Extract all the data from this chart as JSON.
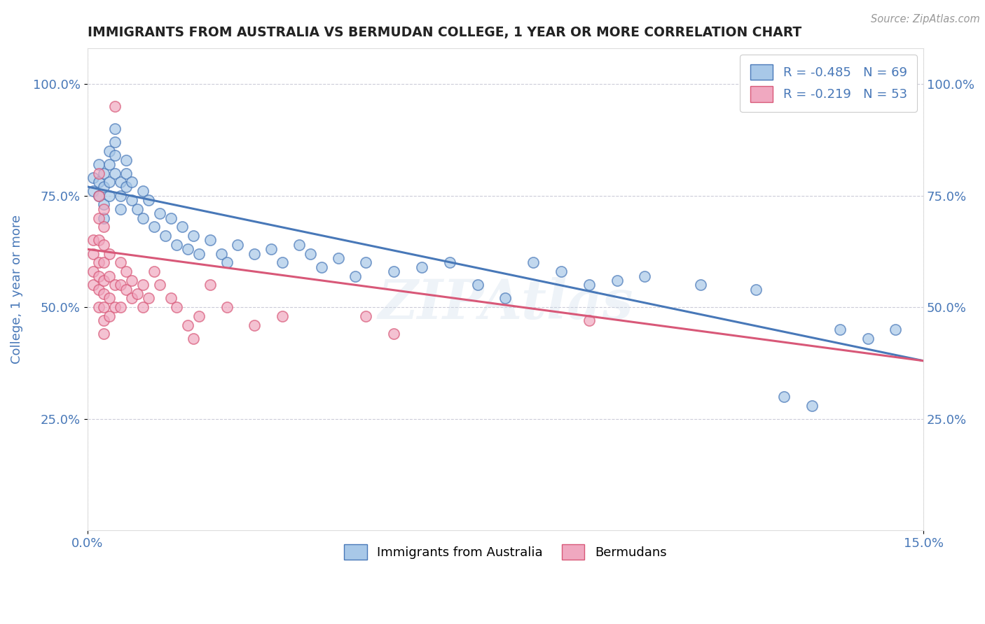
{
  "title": "IMMIGRANTS FROM AUSTRALIA VS BERMUDAN COLLEGE, 1 YEAR OR MORE CORRELATION CHART",
  "source_text": "Source: ZipAtlas.com",
  "ylabel_text": "College, 1 year or more",
  "xmin": 0.0,
  "xmax": 0.15,
  "ymin": 0.0,
  "ymax": 1.08,
  "ytick_vals": [
    0.25,
    0.5,
    0.75,
    1.0
  ],
  "ytick_labels": [
    "25.0%",
    "50.0%",
    "75.0%",
    "100.0%"
  ],
  "xtick_vals": [
    0.0,
    0.15
  ],
  "xtick_labels": [
    "0.0%",
    "15.0%"
  ],
  "blue_scatter": [
    [
      0.001,
      0.79
    ],
    [
      0.001,
      0.76
    ],
    [
      0.002,
      0.82
    ],
    [
      0.002,
      0.78
    ],
    [
      0.002,
      0.75
    ],
    [
      0.003,
      0.8
    ],
    [
      0.003,
      0.77
    ],
    [
      0.003,
      0.73
    ],
    [
      0.003,
      0.7
    ],
    [
      0.004,
      0.85
    ],
    [
      0.004,
      0.82
    ],
    [
      0.004,
      0.78
    ],
    [
      0.004,
      0.75
    ],
    [
      0.005,
      0.9
    ],
    [
      0.005,
      0.87
    ],
    [
      0.005,
      0.84
    ],
    [
      0.005,
      0.8
    ],
    [
      0.006,
      0.78
    ],
    [
      0.006,
      0.75
    ],
    [
      0.006,
      0.72
    ],
    [
      0.007,
      0.83
    ],
    [
      0.007,
      0.8
    ],
    [
      0.007,
      0.77
    ],
    [
      0.008,
      0.78
    ],
    [
      0.008,
      0.74
    ],
    [
      0.009,
      0.72
    ],
    [
      0.01,
      0.76
    ],
    [
      0.01,
      0.7
    ],
    [
      0.011,
      0.74
    ],
    [
      0.012,
      0.68
    ],
    [
      0.013,
      0.71
    ],
    [
      0.014,
      0.66
    ],
    [
      0.015,
      0.7
    ],
    [
      0.016,
      0.64
    ],
    [
      0.017,
      0.68
    ],
    [
      0.018,
      0.63
    ],
    [
      0.019,
      0.66
    ],
    [
      0.02,
      0.62
    ],
    [
      0.022,
      0.65
    ],
    [
      0.024,
      0.62
    ],
    [
      0.025,
      0.6
    ],
    [
      0.027,
      0.64
    ],
    [
      0.03,
      0.62
    ],
    [
      0.033,
      0.63
    ],
    [
      0.035,
      0.6
    ],
    [
      0.038,
      0.64
    ],
    [
      0.04,
      0.62
    ],
    [
      0.042,
      0.59
    ],
    [
      0.045,
      0.61
    ],
    [
      0.048,
      0.57
    ],
    [
      0.05,
      0.6
    ],
    [
      0.055,
      0.58
    ],
    [
      0.06,
      0.59
    ],
    [
      0.065,
      0.6
    ],
    [
      0.07,
      0.55
    ],
    [
      0.075,
      0.52
    ],
    [
      0.08,
      0.6
    ],
    [
      0.085,
      0.58
    ],
    [
      0.09,
      0.55
    ],
    [
      0.095,
      0.56
    ],
    [
      0.1,
      0.57
    ],
    [
      0.11,
      0.55
    ],
    [
      0.12,
      0.54
    ],
    [
      0.125,
      0.3
    ],
    [
      0.13,
      0.28
    ],
    [
      0.135,
      0.45
    ],
    [
      0.14,
      0.43
    ],
    [
      0.145,
      0.45
    ]
  ],
  "pink_scatter": [
    [
      0.001,
      0.65
    ],
    [
      0.001,
      0.62
    ],
    [
      0.001,
      0.58
    ],
    [
      0.001,
      0.55
    ],
    [
      0.002,
      0.8
    ],
    [
      0.002,
      0.75
    ],
    [
      0.002,
      0.7
    ],
    [
      0.002,
      0.65
    ],
    [
      0.002,
      0.6
    ],
    [
      0.002,
      0.57
    ],
    [
      0.002,
      0.54
    ],
    [
      0.002,
      0.5
    ],
    [
      0.003,
      0.72
    ],
    [
      0.003,
      0.68
    ],
    [
      0.003,
      0.64
    ],
    [
      0.003,
      0.6
    ],
    [
      0.003,
      0.56
    ],
    [
      0.003,
      0.53
    ],
    [
      0.003,
      0.5
    ],
    [
      0.003,
      0.47
    ],
    [
      0.003,
      0.44
    ],
    [
      0.004,
      0.62
    ],
    [
      0.004,
      0.57
    ],
    [
      0.004,
      0.52
    ],
    [
      0.004,
      0.48
    ],
    [
      0.005,
      0.95
    ],
    [
      0.005,
      0.55
    ],
    [
      0.005,
      0.5
    ],
    [
      0.006,
      0.6
    ],
    [
      0.006,
      0.55
    ],
    [
      0.006,
      0.5
    ],
    [
      0.007,
      0.58
    ],
    [
      0.007,
      0.54
    ],
    [
      0.008,
      0.56
    ],
    [
      0.008,
      0.52
    ],
    [
      0.009,
      0.53
    ],
    [
      0.01,
      0.55
    ],
    [
      0.01,
      0.5
    ],
    [
      0.011,
      0.52
    ],
    [
      0.012,
      0.58
    ],
    [
      0.013,
      0.55
    ],
    [
      0.015,
      0.52
    ],
    [
      0.016,
      0.5
    ],
    [
      0.018,
      0.46
    ],
    [
      0.019,
      0.43
    ],
    [
      0.02,
      0.48
    ],
    [
      0.022,
      0.55
    ],
    [
      0.025,
      0.5
    ],
    [
      0.03,
      0.46
    ],
    [
      0.035,
      0.48
    ],
    [
      0.05,
      0.48
    ],
    [
      0.055,
      0.44
    ],
    [
      0.09,
      0.47
    ]
  ],
  "blue_line_x": [
    0.0,
    0.15
  ],
  "blue_line_y": [
    0.77,
    0.38
  ],
  "pink_line_x": [
    0.0,
    0.15
  ],
  "pink_line_y": [
    0.63,
    0.38
  ],
  "blue_scatter_color": "#a8c8e8",
  "pink_scatter_color": "#f0a8c0",
  "blue_line_color": "#4878b8",
  "pink_line_color": "#d85878",
  "grid_color": "#c0c0d0",
  "background_color": "#ffffff",
  "title_color": "#222222",
  "tick_label_color": "#4878b8",
  "watermark": "ZIPAtlas"
}
